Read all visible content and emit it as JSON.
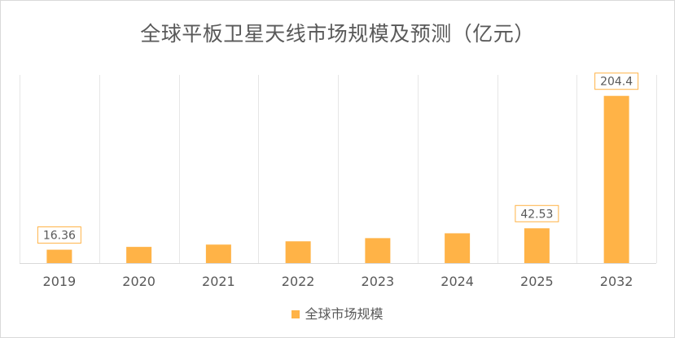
{
  "chart_data": {
    "type": "bar",
    "title": "全球平板卫星天线市场规模及预测（亿元）",
    "categories": [
      "2019",
      "2020",
      "2021",
      "2022",
      "2023",
      "2024",
      "2025",
      "2032"
    ],
    "series": [
      {
        "name": "全球市场规模",
        "values": [
          16.36,
          19.8,
          22.6,
          26.6,
          30.5,
          36.4,
          42.53,
          204.4
        ],
        "data_labels": [
          "16.36",
          "",
          "",
          "",
          "",
          "",
          "42.53",
          "204.4"
        ]
      }
    ],
    "xlabel": "",
    "ylabel": "",
    "ylim": [
      0,
      230
    ],
    "grid": "vertical",
    "legend_position": "bottom",
    "bar_color": "#ffb347",
    "label_border_color": "#ffb347"
  }
}
